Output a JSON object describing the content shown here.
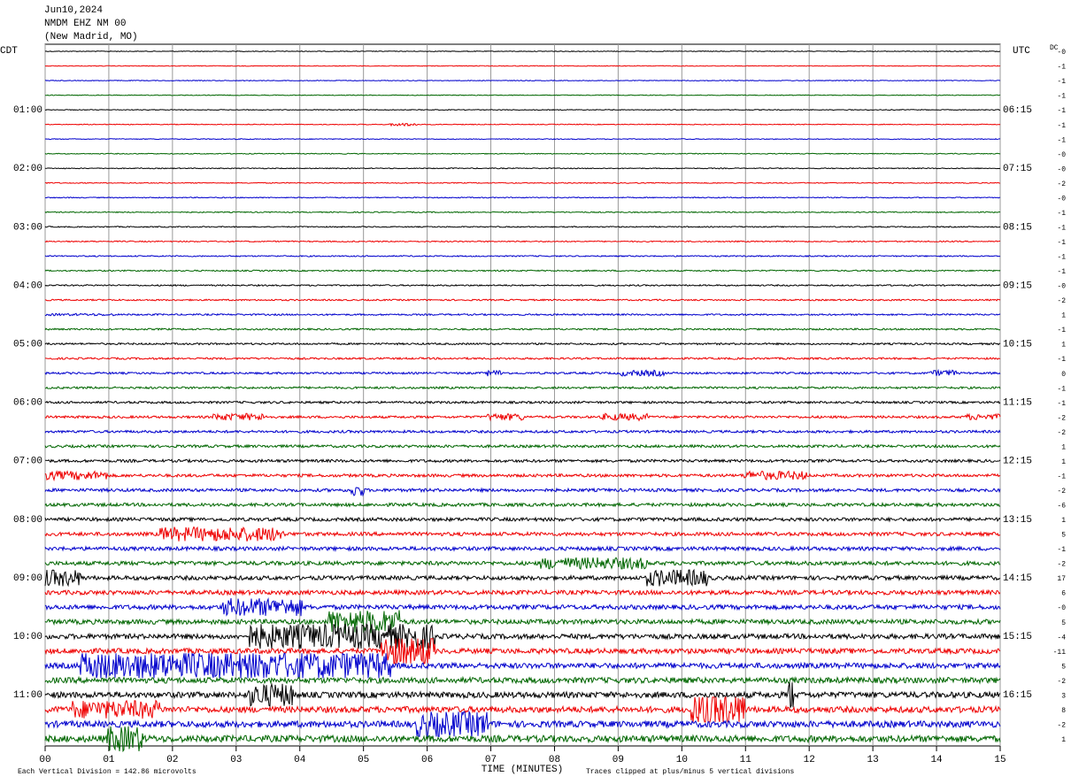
{
  "header": {
    "date": "Jun10,2024",
    "station": "NMDM EHZ NM 00",
    "location": "(New Madrid, MO)"
  },
  "left_axis_title": "CDT",
  "right_axis_title": "UTC",
  "dc_title": "DC",
  "left_labels": [
    "01:00",
    "02:00",
    "03:00",
    "04:00",
    "05:00",
    "06:00",
    "07:00",
    "08:00",
    "09:00",
    "10:00",
    "11:00"
  ],
  "right_labels": [
    "06:15",
    "07:15",
    "08:15",
    "09:15",
    "10:15",
    "11:15",
    "12:15",
    "13:15",
    "14:15",
    "15:15",
    "16:15"
  ],
  "dc_offsets": [
    "-0",
    "-1",
    "-1",
    "-1",
    "-1",
    "-1",
    "-1",
    "-0",
    "-0",
    "-2",
    "-0",
    "-1",
    "-1",
    "-1",
    "-1",
    "-1",
    "-0",
    "-2",
    "1",
    "-1",
    "1",
    "-1",
    "0",
    "-1",
    "-1",
    "-2",
    "-2",
    "1",
    "1",
    "-1",
    "-2",
    "-6",
    "1",
    "5",
    "-1",
    "-2",
    "17",
    "6",
    "-0",
    "5",
    "-4",
    "-11",
    "5",
    "-2",
    "3",
    "8",
    "-2",
    "1"
  ],
  "x_ticks": [
    "00",
    "01",
    "02",
    "03",
    "04",
    "05",
    "06",
    "07",
    "08",
    "09",
    "10",
    "11",
    "12",
    "13",
    "14",
    "15"
  ],
  "x_axis_title": "TIME (MINUTES)",
  "footer_left": "Each Vertical Division =  142.86 microvolts",
  "footer_right": "Traces clipped at plus/minus 5 vertical divisions"
}
